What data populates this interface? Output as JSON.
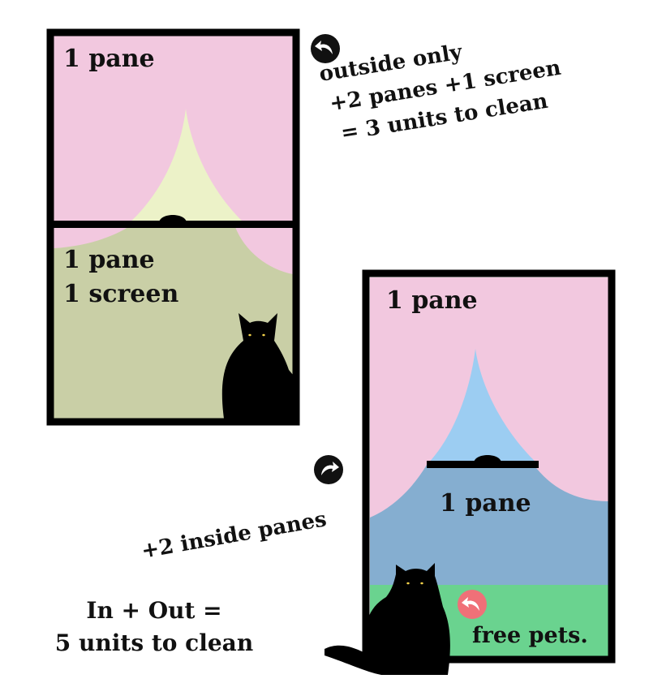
{
  "window_left": {
    "top_pane_label": "1 pane",
    "bottom_label_line1": "1 pane",
    "bottom_label_line2": "1 screen"
  },
  "window_right": {
    "top_pane_label": "1 pane",
    "bottom_pane_label": "1 pane",
    "free_pets_label": "free pets."
  },
  "annotation_outside": {
    "line1": "outside only",
    "line2": "+2 panes +1 screen",
    "line3": "= 3 units to clean"
  },
  "annotation_inside": {
    "text": "+2 inside panes"
  },
  "total": {
    "line1": "In + Out =",
    "line2": "5  units to clean"
  },
  "colors": {
    "frame": "#000000",
    "pink": "#f2c8df",
    "curtain_light": "#ecf2c8",
    "olive": "#c9cfa6",
    "sky_blue": "#9ccdf2",
    "slate_blue": "#85aed0",
    "grass_green": "#6ad38f",
    "arrow_dark": "#111111",
    "arrow_red": "#f07078",
    "cat_eye": "#f4d34a"
  }
}
